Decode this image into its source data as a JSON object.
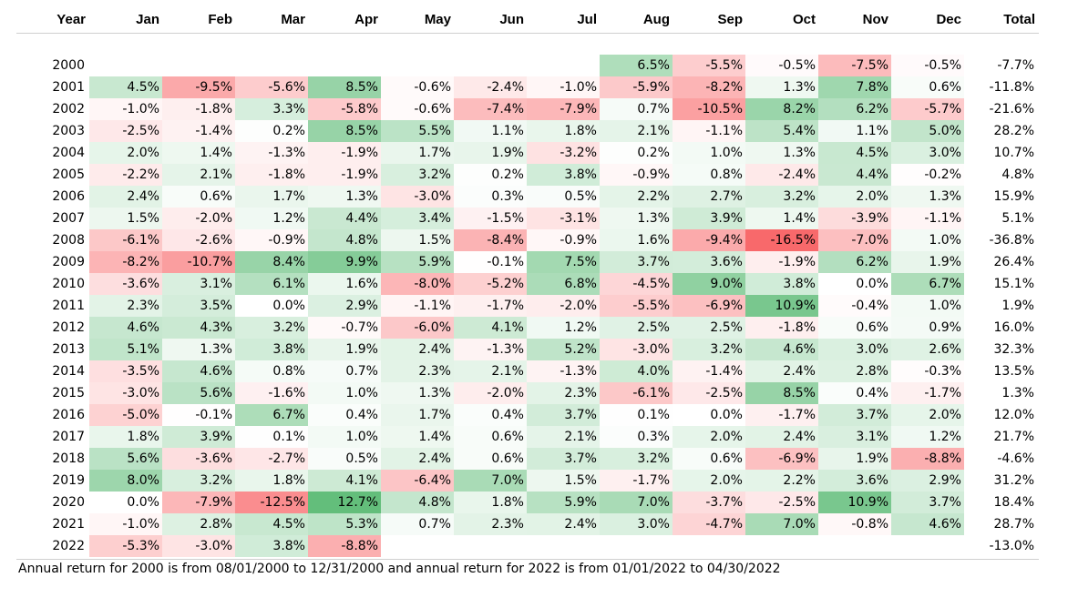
{
  "chart_data": {
    "type": "heatmap",
    "title": "",
    "columns": [
      "Year",
      "Jan",
      "Feb",
      "Mar",
      "Apr",
      "May",
      "Jun",
      "Jul",
      "Aug",
      "Sep",
      "Oct",
      "Nov",
      "Dec",
      "Total"
    ],
    "months": [
      "Jan",
      "Feb",
      "Mar",
      "Apr",
      "May",
      "Jun",
      "Jul",
      "Aug",
      "Sep",
      "Oct",
      "Nov",
      "Dec"
    ],
    "rows": [
      {
        "year": "2000",
        "values": [
          null,
          null,
          null,
          null,
          null,
          null,
          null,
          6.5,
          -5.5,
          -0.5,
          -7.5,
          -0.5
        ],
        "total": -7.7
      },
      {
        "year": "2001",
        "values": [
          4.5,
          -9.5,
          -5.6,
          8.5,
          -0.6,
          -2.4,
          -1.0,
          -5.9,
          -8.2,
          1.3,
          7.8,
          0.6
        ],
        "total": -11.8
      },
      {
        "year": "2002",
        "values": [
          -1.0,
          -1.8,
          3.3,
          -5.8,
          -0.6,
          -7.4,
          -7.9,
          0.7,
          -10.5,
          8.2,
          6.2,
          -5.7
        ],
        "total": -21.6
      },
      {
        "year": "2003",
        "values": [
          -2.5,
          -1.4,
          0.2,
          8.5,
          5.5,
          1.1,
          1.8,
          2.1,
          -1.1,
          5.4,
          1.1,
          5.0
        ],
        "total": 28.2
      },
      {
        "year": "2004",
        "values": [
          2.0,
          1.4,
          -1.3,
          -1.9,
          1.7,
          1.9,
          -3.2,
          0.2,
          1.0,
          1.3,
          4.5,
          3.0
        ],
        "total": 10.7
      },
      {
        "year": "2005",
        "values": [
          -2.2,
          2.1,
          -1.8,
          -1.9,
          3.2,
          0.2,
          3.8,
          -0.9,
          0.8,
          -2.4,
          4.4,
          -0.2
        ],
        "total": 4.8
      },
      {
        "year": "2006",
        "values": [
          2.4,
          0.6,
          1.7,
          1.3,
          -3.0,
          0.3,
          0.5,
          2.2,
          2.7,
          3.2,
          2.0,
          1.3
        ],
        "total": 15.9
      },
      {
        "year": "2007",
        "values": [
          1.5,
          -2.0,
          1.2,
          4.4,
          3.4,
          -1.5,
          -3.1,
          1.3,
          3.9,
          1.4,
          -3.9,
          -1.1
        ],
        "total": 5.1
      },
      {
        "year": "2008",
        "values": [
          -6.1,
          -2.6,
          -0.9,
          4.8,
          1.5,
          -8.4,
          -0.9,
          1.6,
          -9.4,
          -16.5,
          -7.0,
          1.0
        ],
        "total": -36.8
      },
      {
        "year": "2009",
        "values": [
          -8.2,
          -10.7,
          8.4,
          9.9,
          5.9,
          -0.1,
          7.5,
          3.7,
          3.6,
          -1.9,
          6.2,
          1.9
        ],
        "total": 26.4
      },
      {
        "year": "2010",
        "values": [
          -3.6,
          3.1,
          6.1,
          1.6,
          -8.0,
          -5.2,
          6.8,
          -4.5,
          9.0,
          3.8,
          0.0,
          6.7
        ],
        "total": 15.1
      },
      {
        "year": "2011",
        "values": [
          2.3,
          3.5,
          0.0,
          2.9,
          -1.1,
          -1.7,
          -2.0,
          -5.5,
          -6.9,
          10.9,
          -0.4,
          1.0
        ],
        "total": 1.9
      },
      {
        "year": "2012",
        "values": [
          4.6,
          4.3,
          3.2,
          -0.7,
          -6.0,
          4.1,
          1.2,
          2.5,
          2.5,
          -1.8,
          0.6,
          0.9
        ],
        "total": 16.0
      },
      {
        "year": "2013",
        "values": [
          5.1,
          1.3,
          3.8,
          1.9,
          2.4,
          -1.3,
          5.2,
          -3.0,
          3.2,
          4.6,
          3.0,
          2.6
        ],
        "total": 32.3
      },
      {
        "year": "2014",
        "values": [
          -3.5,
          4.6,
          0.8,
          0.7,
          2.3,
          2.1,
          -1.3,
          4.0,
          -1.4,
          2.4,
          2.8,
          -0.3
        ],
        "total": 13.5
      },
      {
        "year": "2015",
        "values": [
          -3.0,
          5.6,
          -1.6,
          1.0,
          1.3,
          -2.0,
          2.3,
          -6.1,
          -2.5,
          8.5,
          0.4,
          -1.7
        ],
        "total": 1.3
      },
      {
        "year": "2016",
        "values": [
          -5.0,
          -0.1,
          6.7,
          0.4,
          1.7,
          0.4,
          3.7,
          0.1,
          0.0,
          -1.7,
          3.7,
          2.0
        ],
        "total": 12.0
      },
      {
        "year": "2017",
        "values": [
          1.8,
          3.9,
          0.1,
          1.0,
          1.4,
          0.6,
          2.1,
          0.3,
          2.0,
          2.4,
          3.1,
          1.2
        ],
        "total": 21.7
      },
      {
        "year": "2018",
        "values": [
          5.6,
          -3.6,
          -2.7,
          0.5,
          2.4,
          0.6,
          3.7,
          3.2,
          0.6,
          -6.9,
          1.9,
          -8.8
        ],
        "total": -4.6
      },
      {
        "year": "2019",
        "values": [
          8.0,
          3.2,
          1.8,
          4.1,
          -6.4,
          7.0,
          1.5,
          -1.7,
          2.0,
          2.2,
          3.6,
          2.9
        ],
        "total": 31.2
      },
      {
        "year": "2020",
        "values": [
          0.0,
          -7.9,
          -12.5,
          12.7,
          4.8,
          1.8,
          5.9,
          7.0,
          -3.7,
          -2.5,
          10.9,
          3.7
        ],
        "total": 18.4
      },
      {
        "year": "2021",
        "values": [
          -1.0,
          2.8,
          4.5,
          5.3,
          0.7,
          2.3,
          2.4,
          3.0,
          -4.7,
          7.0,
          -0.8,
          4.6
        ],
        "total": 28.7
      },
      {
        "year": "2022",
        "values": [
          -5.3,
          -3.0,
          3.8,
          -8.8,
          null,
          null,
          null,
          null,
          null,
          null,
          null,
          null
        ],
        "total": -13.0
      }
    ],
    "unit": "%",
    "color_scale": {
      "negative_max": "#f8696b",
      "positive_max": "#63be7b",
      "neutral": "#ffffff"
    }
  },
  "footnote": "Annual return for 2000 is from 08/01/2000 to 12/31/2000 and annual return for 2022 is from 01/01/2022 to 04/30/2022"
}
